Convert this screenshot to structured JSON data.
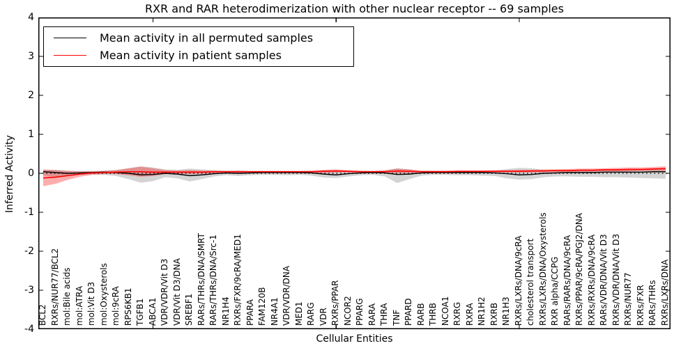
{
  "title": "RXR and RAR heterodimerization with other nuclear receptor -- 69 samples",
  "axes": {
    "xlabel": "Cellular Entities",
    "ylabel": "Inferred Activity",
    "yticks": [
      "4",
      "3",
      "2",
      "1",
      "0",
      "-1",
      "-2",
      "-3",
      "-4"
    ],
    "ylim": [
      -4,
      4
    ],
    "grid": false
  },
  "legend": {
    "position": "upper left",
    "entries": [
      {
        "label": "Mean activity in all permuted samples",
        "color": "#000000"
      },
      {
        "label": "Mean activity in patient samples",
        "color": "#ff0000"
      }
    ]
  },
  "colors": {
    "permuted_line": "#000000",
    "patient_line": "#ff0000",
    "permuted_band": "#bbbbbb",
    "patient_band": "#ff0000",
    "zero_line": "#1a1a1a",
    "background": "#ffffff"
  },
  "chart_data": {
    "type": "line",
    "title": "RXR and RAR heterodimerization with other nuclear receptor -- 69 samples",
    "xlabel": "Cellular Entities",
    "ylabel": "Inferred Activity",
    "ylim": [
      -4,
      4
    ],
    "n_samples": 69,
    "zero_line": {
      "y": 0,
      "style": "dotted",
      "color": "#1a1a1a"
    },
    "categories": [
      "BCL2",
      "RXRs/NUR77/BCL2",
      "mol:Bile acids",
      "mol:ATRA",
      "mol:Vit D3",
      "mol:Oxysterols",
      "mol:9cRA",
      "RPS6KB1",
      "TGFB1",
      "ABCA1",
      "VDR/VDR/Vit D3",
      "VDR/Vit D3/DNA",
      "SREBF1",
      "RARs/THRs/DNA/SMRT",
      "RARs/THRs/DNA/Src-1",
      "NR1H4",
      "RXRs/FXR/9cRA/MED1",
      "PPARA",
      "FAM120B",
      "NR4A1",
      "VDR/VDR/DNA",
      "MED1",
      "RARG",
      "VDR",
      "RXRs/PPAR",
      "NCOR2",
      "PPARG",
      "RARA",
      "THRA",
      "TNF",
      "PPARD",
      "RARB",
      "THRB",
      "NCOA1",
      "RXRG",
      "RXRA",
      "NR1H2",
      "RXRB",
      "NR1H3",
      "RXRs/LXRs/DNA/9cRA",
      "cholesterol transport",
      "RXRs/LXRs/DNA/Oxysterols",
      "RXR alpha/CCPG",
      "RARs/RARs/DNA/9cRA",
      "RXRs/PPAR/9cRA/PGJ2/DNA",
      "RXRs/RXRs/DNA/9cRA",
      "RARs/VDR/DNA/Vit D3",
      "RXRs/VDR/DNA/Vit D3",
      "RXRs/NUR77",
      "RXRs/FXR",
      "RARs/THRs",
      "RXRs/LXRs/DNA"
    ],
    "series": [
      {
        "name": "Mean activity in all permuted samples",
        "color": "#000000",
        "values": [
          0.04,
          0.02,
          0.0,
          0.01,
          0.02,
          0.03,
          0.02,
          0.0,
          -0.04,
          -0.03,
          0.0,
          -0.02,
          -0.06,
          -0.04,
          -0.01,
          0.01,
          0.0,
          0.01,
          0.02,
          0.02,
          0.02,
          0.02,
          0.01,
          -0.02,
          -0.04,
          -0.01,
          0.01,
          0.02,
          0.01,
          -0.03,
          -0.02,
          0.01,
          0.02,
          0.02,
          0.02,
          0.02,
          0.02,
          0.01,
          -0.01,
          -0.04,
          -0.03,
          0.0,
          0.01,
          0.02,
          0.02,
          0.02,
          0.03,
          0.03,
          0.03,
          0.03,
          0.04,
          0.04
        ],
        "band_low": [
          -0.06,
          -0.09,
          -0.07,
          -0.04,
          -0.03,
          -0.04,
          -0.07,
          -0.15,
          -0.24,
          -0.2,
          -0.1,
          -0.13,
          -0.21,
          -0.15,
          -0.08,
          -0.05,
          -0.07,
          -0.05,
          -0.04,
          -0.04,
          -0.05,
          -0.04,
          -0.06,
          -0.11,
          -0.12,
          -0.08,
          -0.05,
          -0.04,
          -0.08,
          -0.25,
          -0.15,
          -0.06,
          -0.04,
          -0.04,
          -0.05,
          -0.05,
          -0.06,
          -0.07,
          -0.13,
          -0.16,
          -0.15,
          -0.1,
          -0.08,
          -0.08,
          -0.09,
          -0.09,
          -0.1,
          -0.1,
          -0.11,
          -0.12,
          -0.13,
          -0.14
        ],
        "band_high": [
          0.09,
          0.09,
          0.07,
          0.06,
          0.06,
          0.07,
          0.09,
          0.13,
          0.18,
          0.15,
          0.1,
          0.09,
          0.12,
          0.1,
          0.08,
          0.07,
          0.07,
          0.06,
          0.06,
          0.06,
          0.06,
          0.06,
          0.06,
          0.08,
          0.08,
          0.07,
          0.06,
          0.06,
          0.07,
          0.13,
          0.1,
          0.06,
          0.06,
          0.06,
          0.06,
          0.06,
          0.06,
          0.07,
          0.11,
          0.14,
          0.13,
          0.09,
          0.08,
          0.08,
          0.08,
          0.08,
          0.09,
          0.09,
          0.1,
          0.11,
          0.12,
          0.13
        ]
      },
      {
        "name": "Mean activity in patient samples",
        "color": "#ff0000",
        "values": [
          -0.12,
          -0.1,
          -0.06,
          -0.02,
          0.01,
          0.02,
          0.03,
          0.04,
          0.04,
          0.03,
          0.03,
          0.03,
          0.03,
          0.03,
          0.04,
          0.04,
          0.04,
          0.04,
          0.04,
          0.04,
          0.04,
          0.04,
          0.04,
          0.05,
          0.06,
          0.05,
          0.04,
          0.04,
          0.04,
          0.06,
          0.05,
          0.04,
          0.04,
          0.04,
          0.05,
          0.05,
          0.05,
          0.05,
          0.05,
          0.05,
          0.06,
          0.06,
          0.07,
          0.07,
          0.08,
          0.08,
          0.09,
          0.09,
          0.1,
          0.1,
          0.11,
          0.12
        ],
        "band_low": [
          -0.33,
          -0.27,
          -0.17,
          -0.09,
          -0.04,
          -0.02,
          -0.02,
          -0.05,
          -0.09,
          -0.07,
          -0.02,
          -0.01,
          -0.02,
          -0.01,
          0.0,
          0.01,
          0.01,
          0.01,
          0.01,
          0.01,
          0.01,
          0.01,
          0.01,
          0.01,
          0.02,
          0.02,
          0.01,
          0.01,
          0.01,
          0.0,
          0.01,
          0.01,
          0.01,
          0.01,
          0.02,
          0.02,
          0.02,
          0.02,
          0.02,
          0.02,
          0.02,
          0.03,
          0.03,
          0.03,
          0.04,
          0.04,
          0.05,
          0.05,
          0.05,
          0.06,
          0.06,
          0.06
        ],
        "band_high": [
          0.1,
          0.08,
          0.06,
          0.05,
          0.05,
          0.06,
          0.08,
          0.13,
          0.17,
          0.13,
          0.08,
          0.07,
          0.08,
          0.07,
          0.07,
          0.06,
          0.07,
          0.06,
          0.06,
          0.06,
          0.06,
          0.06,
          0.07,
          0.09,
          0.1,
          0.08,
          0.07,
          0.06,
          0.08,
          0.12,
          0.1,
          0.07,
          0.07,
          0.07,
          0.07,
          0.07,
          0.07,
          0.08,
          0.08,
          0.09,
          0.09,
          0.1,
          0.1,
          0.11,
          0.12,
          0.12,
          0.13,
          0.14,
          0.15,
          0.15,
          0.16,
          0.18
        ]
      }
    ]
  }
}
